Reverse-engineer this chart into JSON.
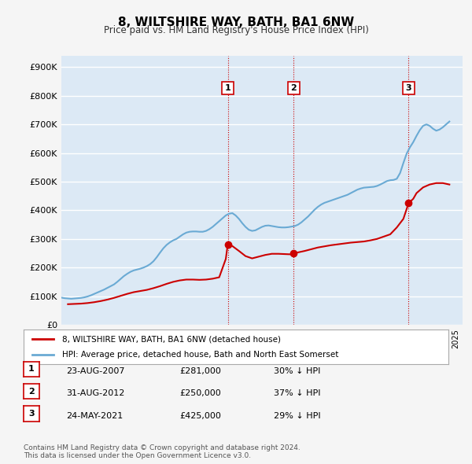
{
  "title": "8, WILTSHIRE WAY, BATH, BA1 6NW",
  "subtitle": "Price paid vs. HM Land Registry's House Price Index (HPI)",
  "ylabel_ticks": [
    "£0",
    "£100K",
    "£200K",
    "£300K",
    "£400K",
    "£500K",
    "£600K",
    "£700K",
    "£800K",
    "£900K"
  ],
  "ytick_values": [
    0,
    100000,
    200000,
    300000,
    400000,
    500000,
    600000,
    700000,
    800000,
    900000
  ],
  "ylim": [
    0,
    940000
  ],
  "xlim_start": 1995.0,
  "xlim_end": 2025.5,
  "background_color": "#dce9f5",
  "plot_bg_color": "#dce9f5",
  "grid_color": "#ffffff",
  "hpi_color": "#6aaad4",
  "price_color": "#cc0000",
  "legend_label_price": "8, WILTSHIRE WAY, BATH, BA1 6NW (detached house)",
  "legend_label_hpi": "HPI: Average price, detached house, Bath and North East Somerset",
  "transactions": [
    {
      "id": 1,
      "date": "23-AUG-2007",
      "price": 281000,
      "pct": "30% ↓ HPI",
      "x": 2007.65
    },
    {
      "id": 2,
      "date": "31-AUG-2012",
      "price": 250000,
      "pct": "37% ↓ HPI",
      "x": 2012.67
    },
    {
      "id": 3,
      "date": "24-MAY-2021",
      "price": 425000,
      "pct": "29% ↓ HPI",
      "x": 2021.4
    }
  ],
  "footnote": "Contains HM Land Registry data © Crown copyright and database right 2024.\nThis data is licensed under the Open Government Licence v3.0.",
  "hpi_data_x": [
    1995.0,
    1995.25,
    1995.5,
    1995.75,
    1996.0,
    1996.25,
    1996.5,
    1996.75,
    1997.0,
    1997.25,
    1997.5,
    1997.75,
    1998.0,
    1998.25,
    1998.5,
    1998.75,
    1999.0,
    1999.25,
    1999.5,
    1999.75,
    2000.0,
    2000.25,
    2000.5,
    2000.75,
    2001.0,
    2001.25,
    2001.5,
    2001.75,
    2002.0,
    2002.25,
    2002.5,
    2002.75,
    2003.0,
    2003.25,
    2003.5,
    2003.75,
    2004.0,
    2004.25,
    2004.5,
    2004.75,
    2005.0,
    2005.25,
    2005.5,
    2005.75,
    2006.0,
    2006.25,
    2006.5,
    2006.75,
    2007.0,
    2007.25,
    2007.5,
    2007.75,
    2008.0,
    2008.25,
    2008.5,
    2008.75,
    2009.0,
    2009.25,
    2009.5,
    2009.75,
    2010.0,
    2010.25,
    2010.5,
    2010.75,
    2011.0,
    2011.25,
    2011.5,
    2011.75,
    2012.0,
    2012.25,
    2012.5,
    2012.75,
    2013.0,
    2013.25,
    2013.5,
    2013.75,
    2014.0,
    2014.25,
    2014.5,
    2014.75,
    2015.0,
    2015.25,
    2015.5,
    2015.75,
    2016.0,
    2016.25,
    2016.5,
    2016.75,
    2017.0,
    2017.25,
    2017.5,
    2017.75,
    2018.0,
    2018.25,
    2018.5,
    2018.75,
    2019.0,
    2019.25,
    2019.5,
    2019.75,
    2020.0,
    2020.25,
    2020.5,
    2020.75,
    2021.0,
    2021.25,
    2021.5,
    2021.75,
    2022.0,
    2022.25,
    2022.5,
    2022.75,
    2023.0,
    2023.25,
    2023.5,
    2023.75,
    2024.0,
    2024.25,
    2024.5
  ],
  "hpi_data_y": [
    95000,
    93000,
    92000,
    91000,
    92000,
    93000,
    94000,
    96000,
    99000,
    103000,
    108000,
    113000,
    118000,
    123000,
    129000,
    135000,
    141000,
    150000,
    160000,
    170000,
    178000,
    185000,
    190000,
    193000,
    196000,
    200000,
    205000,
    212000,
    222000,
    236000,
    252000,
    267000,
    279000,
    288000,
    295000,
    300000,
    308000,
    316000,
    322000,
    325000,
    326000,
    326000,
    325000,
    325000,
    328000,
    334000,
    342000,
    352000,
    362000,
    372000,
    382000,
    388000,
    390000,
    382000,
    370000,
    355000,
    342000,
    332000,
    328000,
    330000,
    336000,
    342000,
    346000,
    347000,
    345000,
    343000,
    341000,
    340000,
    340000,
    341000,
    343000,
    345000,
    350000,
    358000,
    368000,
    378000,
    390000,
    402000,
    412000,
    420000,
    426000,
    430000,
    434000,
    438000,
    442000,
    446000,
    450000,
    454000,
    460000,
    466000,
    472000,
    476000,
    479000,
    480000,
    481000,
    482000,
    485000,
    490000,
    496000,
    502000,
    505000,
    506000,
    510000,
    530000,
    565000,
    598000,
    620000,
    638000,
    660000,
    680000,
    695000,
    700000,
    695000,
    685000,
    678000,
    682000,
    690000,
    700000,
    710000
  ],
  "price_data_x": [
    1995.5,
    1996.0,
    1996.5,
    1997.0,
    1997.5,
    1998.0,
    1998.5,
    1999.0,
    1999.5,
    2000.0,
    2000.5,
    2001.0,
    2001.5,
    2002.0,
    2002.5,
    2003.0,
    2003.5,
    2004.0,
    2004.5,
    2005.0,
    2005.5,
    2006.0,
    2006.5,
    2007.0,
    2007.5,
    2007.65,
    2008.0,
    2008.5,
    2009.0,
    2009.5,
    2010.0,
    2010.5,
    2011.0,
    2011.5,
    2012.0,
    2012.5,
    2012.67,
    2013.0,
    2013.5,
    2014.0,
    2014.5,
    2015.0,
    2015.5,
    2016.0,
    2016.5,
    2017.0,
    2017.5,
    2018.0,
    2018.5,
    2019.0,
    2019.5,
    2020.0,
    2020.5,
    2021.0,
    2021.4,
    2021.75,
    2022.0,
    2022.5,
    2023.0,
    2023.5,
    2024.0,
    2024.5
  ],
  "price_data_y": [
    72000,
    73000,
    74000,
    76000,
    79000,
    83000,
    88000,
    94000,
    101000,
    108000,
    114000,
    118000,
    122000,
    128000,
    135000,
    143000,
    150000,
    155000,
    158000,
    158000,
    157000,
    158000,
    161000,
    166000,
    230000,
    281000,
    275000,
    258000,
    240000,
    232000,
    238000,
    244000,
    248000,
    248000,
    247000,
    246000,
    250000,
    253000,
    258000,
    264000,
    270000,
    274000,
    278000,
    281000,
    284000,
    287000,
    289000,
    291000,
    295000,
    300000,
    308000,
    316000,
    340000,
    370000,
    425000,
    440000,
    460000,
    480000,
    490000,
    495000,
    495000,
    490000
  ]
}
